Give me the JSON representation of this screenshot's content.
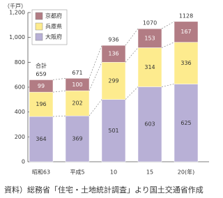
{
  "chart_data": {
    "type": "stacked_bar",
    "y_label": "（千戸）",
    "categories": [
      "昭和63",
      "平成5",
      "10",
      "15",
      "20(年)"
    ],
    "series": [
      {
        "name": "大阪府",
        "color": "#b8b0d6",
        "values": [
          364,
          369,
          501,
          603,
          625
        ]
      },
      {
        "name": "兵庫県",
        "color": "#fdeb8e",
        "values": [
          196,
          202,
          299,
          314,
          336
        ]
      },
      {
        "name": "京都府",
        "color": "#b27c84",
        "values": [
          99,
          100,
          136,
          153,
          167
        ]
      }
    ],
    "totals_label": "合計",
    "totals": [
      659,
      671,
      936,
      1070,
      1128
    ],
    "ylim": [
      0,
      1200
    ],
    "yticks": [
      0,
      200,
      400,
      600,
      800,
      {
        "value": 1000,
        "label": "1,000"
      },
      {
        "value": 1200,
        "label": "1,200"
      }
    ],
    "legend": "top-left",
    "source": "資料）総務省「住宅・土地統計調査」より国土交通省作成"
  }
}
